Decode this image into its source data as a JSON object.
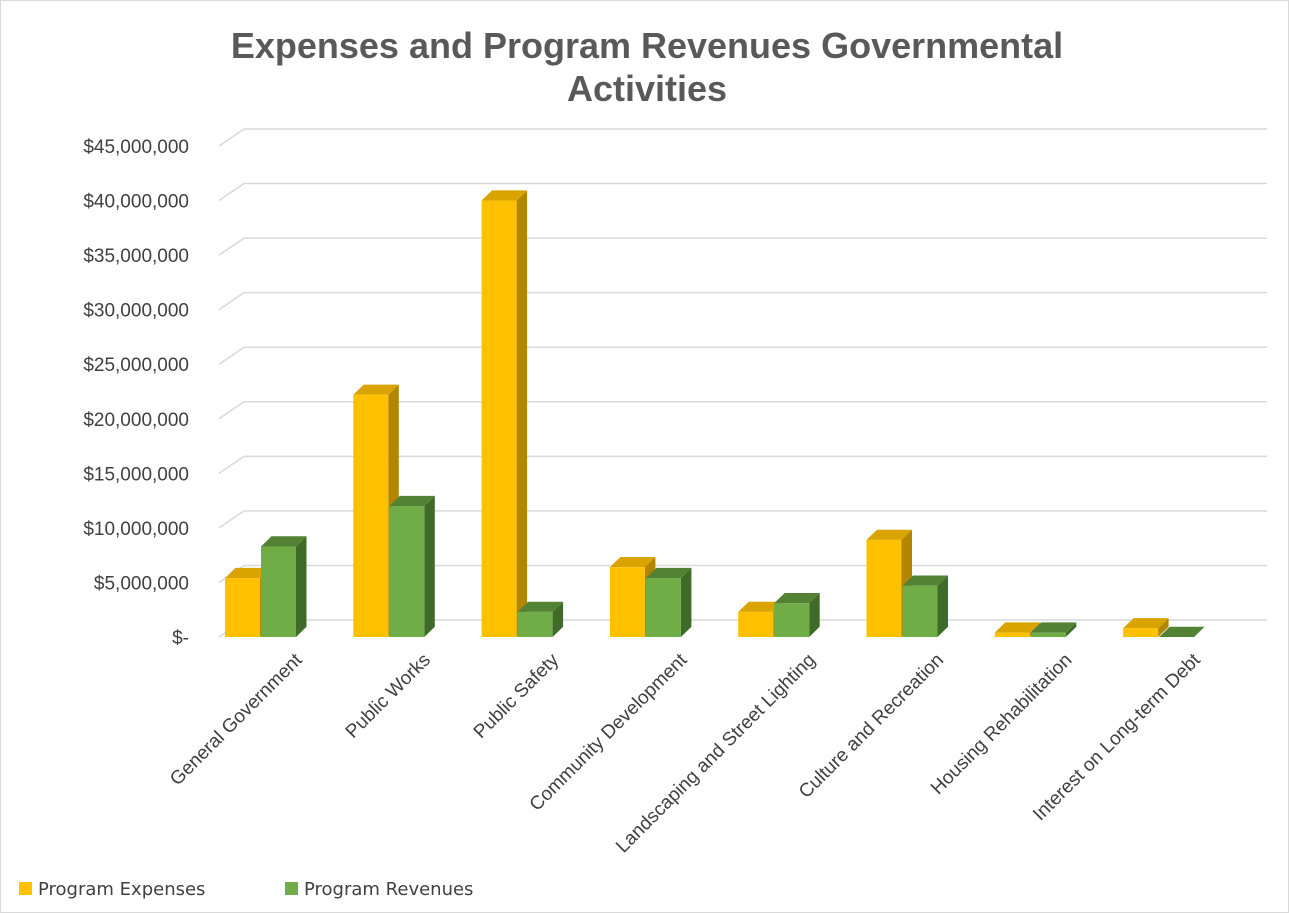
{
  "chart_data": {
    "type": "bar",
    "title_lines": [
      "Expenses and Program Revenues Governmental",
      "Activities"
    ],
    "categories": [
      "General Government",
      "Public Works",
      "Public Safety",
      "Community Development",
      "Landscaping and Street Lighting",
      "Culture and Recreation",
      "Housing Rehabilitation",
      "Interest on Long-term Debt"
    ],
    "series": [
      {
        "name": "Program Expenses",
        "color": "#FFC000",
        "top_color": "#D9A300",
        "side_color": "#B38600",
        "values": [
          5400000,
          22200000,
          40000000,
          6400000,
          2300000,
          8900000,
          400000,
          800000
        ]
      },
      {
        "name": "Program Revenues",
        "color": "#70AD47",
        "top_color": "#548235",
        "side_color": "#3F6A27",
        "values": [
          8300000,
          12000000,
          2300000,
          5400000,
          3100000,
          4700000,
          400000,
          0
        ]
      }
    ],
    "ylim": [
      0,
      45000000
    ],
    "yticks": [
      0,
      5000000,
      10000000,
      15000000,
      20000000,
      25000000,
      30000000,
      35000000,
      40000000,
      45000000
    ],
    "ytick_labels": [
      "$-",
      "$5,000,000",
      "$10,000,000",
      "$15,000,000",
      "$20,000,000",
      "$25,000,000",
      "$30,000,000",
      "$35,000,000",
      "$40,000,000",
      "$45,000,000"
    ],
    "xlabel": "",
    "ylabel": "",
    "grid": true,
    "legend_position": "bottom-left",
    "style": "3d-clustered-column"
  }
}
